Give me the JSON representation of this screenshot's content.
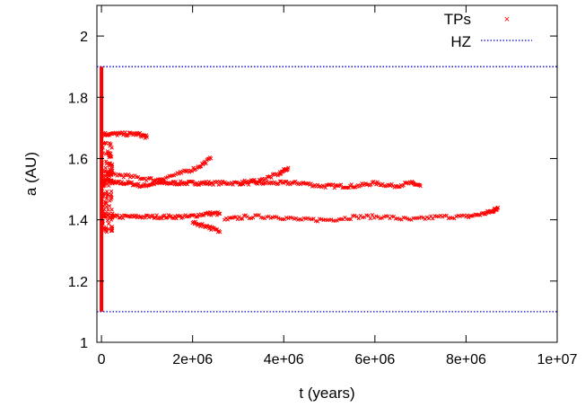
{
  "chart_data": {
    "type": "scatter",
    "xlabel": "t (years)",
    "ylabel": "a (AU)",
    "xlim": [
      -100000,
      10000000
    ],
    "ylim": [
      1,
      2.1
    ],
    "x_ticks": [
      0,
      2000000,
      4000000,
      6000000,
      8000000,
      10000000
    ],
    "x_tick_labels": [
      "0",
      "2e+06",
      "4e+06",
      "6e+06",
      "8e+06",
      "1e+07"
    ],
    "y_ticks": [
      1,
      1.2,
      1.4,
      1.6,
      1.8,
      2
    ],
    "y_tick_labels": [
      "1",
      "1.2",
      "1.4",
      "1.6",
      "1.8",
      "2"
    ],
    "grid": false,
    "legend_position": "top-right",
    "colors": {
      "tps": "#ff0000",
      "hz": "#0000cc"
    },
    "series": [
      {
        "name": "TPs",
        "kind": "points",
        "branches": [
          {
            "x": [
              0,
              100000,
              300000,
              600000,
              900000,
              1200000,
              1500000,
              1800000,
              2100000,
              2400000,
              2800000,
              3200000,
              3600000,
              4000000,
              4400000,
              4800000,
              5200000,
              5600000,
              6000000,
              6400000,
              6800000,
              7000000
            ],
            "y": [
              1.52,
              1.53,
              1.52,
              1.52,
              1.51,
              1.52,
              1.52,
              1.52,
              1.52,
              1.52,
              1.52,
              1.52,
              1.52,
              1.52,
              1.52,
              1.51,
              1.51,
              1.51,
              1.52,
              1.51,
              1.52,
              1.51
            ]
          },
          {
            "x": [
              0,
              300000,
              700000,
              1100000,
              1500000,
              1900000,
              2300000,
              2600000
            ],
            "y": [
              1.41,
              1.41,
              1.41,
              1.41,
              1.41,
              1.41,
              1.42,
              1.42
            ]
          },
          {
            "x": [
              2700000,
              3200000,
              3800000,
              4400000,
              5000000,
              5600000,
              6200000,
              6800000,
              7400000,
              8000000,
              8400000,
              8600000,
              8700000
            ],
            "y": [
              1.4,
              1.41,
              1.41,
              1.4,
              1.4,
              1.41,
              1.41,
              1.4,
              1.41,
              1.41,
              1.42,
              1.43,
              1.44
            ]
          },
          {
            "x": [
              0,
              200000,
              500000,
              800000,
              1000000
            ],
            "y": [
              1.68,
              1.68,
              1.68,
              1.68,
              1.67
            ]
          },
          {
            "x": [
              200000,
              700000,
              1200000,
              1700000,
              2100000,
              2400000
            ],
            "y": [
              1.55,
              1.54,
              1.53,
              1.55,
              1.57,
              1.6
            ]
          },
          {
            "x": [
              3000000,
              3500000,
              3900000,
              4100000
            ],
            "y": [
              1.52,
              1.53,
              1.55,
              1.57
            ]
          },
          {
            "x": [
              2000000,
              2300000,
              2600000
            ],
            "y": [
              1.39,
              1.38,
              1.36
            ]
          }
        ]
      },
      {
        "name": "HZ",
        "kind": "line",
        "x": [
          -100000,
          10000000
        ],
        "y": [
          1.9,
          1.9
        ]
      },
      {
        "name": "HZ",
        "kind": "line",
        "x": [
          -100000,
          10000000
        ],
        "y": [
          1.1,
          1.1
        ]
      }
    ]
  }
}
